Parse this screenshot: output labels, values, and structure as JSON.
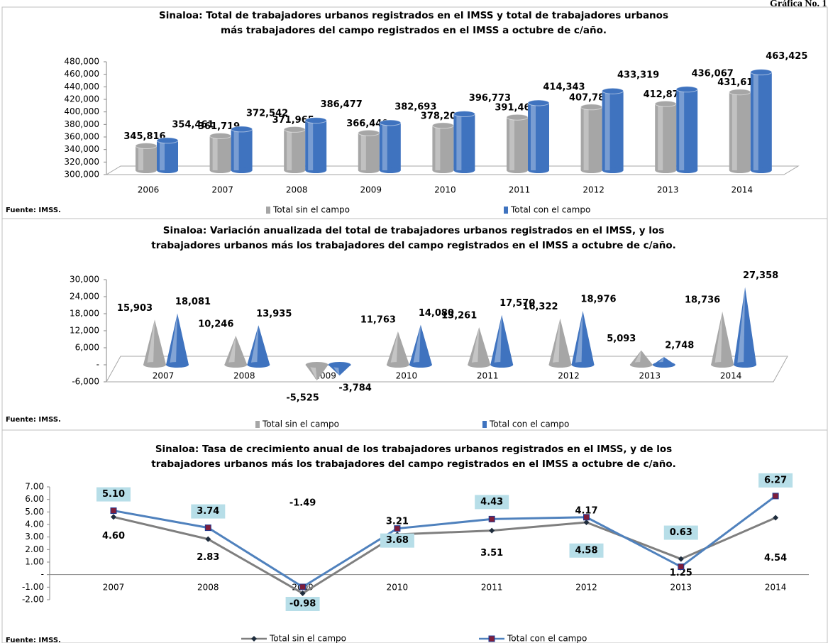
{
  "header": "Gráfica No. 1",
  "chart_data": [
    {
      "type": "bar",
      "shape": "cylinder",
      "title": [
        "Sinaloa: Total de trabajadores urbanos registrados en el IMSS y total de trabajadores urbanos",
        "más trabajadores del campo registrados en el IMSS a octubre de c/año."
      ],
      "source": "Fuente: IMSS.",
      "categories": [
        "2006",
        "2007",
        "2008",
        "2009",
        "2010",
        "2011",
        "2012",
        "2013",
        "2014"
      ],
      "series": [
        {
          "name": "Total sin el campo",
          "color": "#a6a6a6",
          "values": [
            345816,
            361719,
            371965,
            366440,
            378203,
            391464,
            407786,
            412879,
            431615
          ],
          "value_labels": [
            "345,816",
            "361,719",
            "371,965",
            "366,440",
            "378,203",
            "391,464",
            "407,786",
            "412,879",
            "431,615"
          ]
        },
        {
          "name": "Total con el campo",
          "color": "#3f73bf",
          "values": [
            354461,
            372542,
            386477,
            382693,
            396773,
            414343,
            433319,
            436067,
            463425
          ],
          "value_labels": [
            "354,461",
            "372,542",
            "386,477",
            "382,693",
            "396,773",
            "414,343",
            "433,319",
            "436,067",
            "463,425"
          ]
        }
      ],
      "ylim": [
        300000,
        480000
      ],
      "yticks": [
        {
          "value": 300000,
          "label": "300,000"
        },
        {
          "value": 320000,
          "label": "320,000"
        },
        {
          "value": 340000,
          "label": "340,000"
        },
        {
          "value": 360000,
          "label": "360,000"
        },
        {
          "value": 380000,
          "label": "380,000"
        },
        {
          "value": 400000,
          "label": "400,000"
        },
        {
          "value": 420000,
          "label": "420,000"
        },
        {
          "value": 440000,
          "label": "440,000"
        },
        {
          "value": 460000,
          "label": "460,000"
        },
        {
          "value": 480000,
          "label": "480,000"
        }
      ]
    },
    {
      "type": "bar",
      "shape": "cone",
      "title": [
        "Sinaloa: Variación anualizada del total de trabajadores urbanos registrados en el IMSS, y los",
        "trabajadores urbanos más los trabajadores del campo registrados en el IMSS a octubre de c/año."
      ],
      "source": "Fuente: IMSS.",
      "categories": [
        "2007",
        "2008",
        "2009",
        "2010",
        "2011",
        "2012",
        "2013",
        "2014"
      ],
      "series": [
        {
          "name": "Total sin el campo",
          "color": "#a6a6a6",
          "values": [
            15903,
            10246,
            -5525,
            11763,
            13261,
            16322,
            5093,
            18736
          ],
          "value_labels": [
            "15,903",
            "10,246",
            "-5,525",
            "11,763",
            "13,261",
            "16,322",
            "5,093",
            "18,736"
          ]
        },
        {
          "name": "Total con el campo",
          "color": "#3f73bf",
          "values": [
            18081,
            13935,
            -3784,
            14080,
            17570,
            18976,
            2748,
            27358
          ],
          "value_labels": [
            "18,081",
            "13,935",
            "-3,784",
            "14,080",
            "17,570",
            "18,976",
            "2,748",
            "27,358"
          ]
        }
      ],
      "ylim": [
        -6000,
        30000
      ],
      "yticks": [
        {
          "value": -6000,
          "label": "-6,000"
        },
        {
          "value": 0,
          "label": "-"
        },
        {
          "value": 6000,
          "label": "6,000"
        },
        {
          "value": 12000,
          "label": "12,000"
        },
        {
          "value": 18000,
          "label": "18,000"
        },
        {
          "value": 24000,
          "label": "24,000"
        },
        {
          "value": 30000,
          "label": "30,000"
        }
      ]
    },
    {
      "type": "line",
      "title": [
        "Sinaloa: Tasa de crecimiento anual de los trabajadores urbanos registrados en el IMSS, y de los",
        "trabajadores urbanos más los trabajadores del campo registrados en el IMSS a octubre de c/año."
      ],
      "source": "Fuente: IMSS.",
      "categories": [
        "2007",
        "2008",
        "2009",
        "2010",
        "2011",
        "2012",
        "2013",
        "2014"
      ],
      "series": [
        {
          "name": "Total sin el campo",
          "color": "#7f7f7f",
          "values": [
            4.6,
            2.83,
            -1.49,
            3.21,
            3.51,
            4.17,
            1.25,
            4.54
          ],
          "value_labels": [
            "4.60",
            "2.83",
            "-1.49",
            "3.21",
            "3.51",
            "4.17",
            "1.25",
            "4.54"
          ]
        },
        {
          "name": "Total con el campo",
          "color": "#4f81bd",
          "values": [
            5.1,
            3.74,
            -0.98,
            3.68,
            4.43,
            4.58,
            0.63,
            6.27
          ],
          "value_labels": [
            "5.10",
            "3.74",
            "-0.98",
            "3.68",
            "4.43",
            "4.58",
            "0.63",
            "6.27"
          ]
        }
      ],
      "ylim": [
        -2,
        7
      ],
      "yticks": [
        {
          "value": -2,
          "label": "-2.00"
        },
        {
          "value": -1,
          "label": "-1.00"
        },
        {
          "value": 0,
          "label": "-"
        },
        {
          "value": 1,
          "label": "1.00"
        },
        {
          "value": 2,
          "label": "2.00"
        },
        {
          "value": 3,
          "label": "3.00"
        },
        {
          "value": 4,
          "label": "4.00"
        },
        {
          "value": 5,
          "label": "5.00"
        },
        {
          "value": 6,
          "label": "6.00"
        },
        {
          "value": 7,
          "label": "7.00"
        }
      ]
    }
  ]
}
